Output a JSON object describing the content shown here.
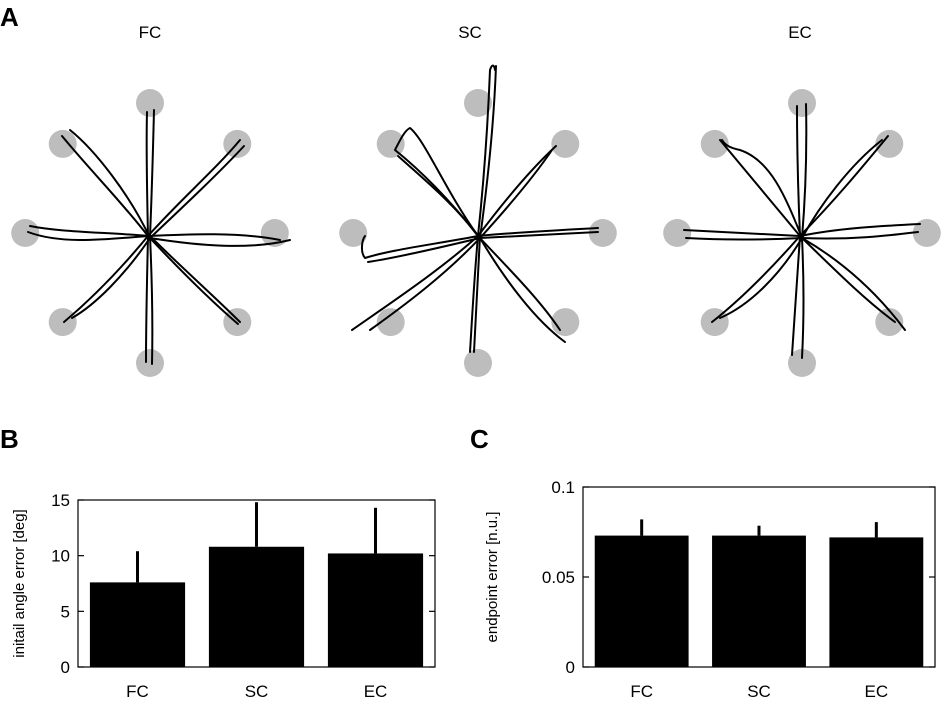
{
  "panel_a": {
    "letter": "A",
    "conditions": [
      "FC",
      "SC",
      "EC"
    ],
    "target_color": "#bdbdbd",
    "trace_color": "#000000"
  },
  "chart_data": [
    {
      "type": "bar",
      "panel": "B",
      "categories": [
        "FC",
        "SC",
        "EC"
      ],
      "values": [
        7.6,
        10.8,
        10.2
      ],
      "errors": [
        2.8,
        4.0,
        4.1
      ],
      "ylabel": "initail angle error [deg]",
      "ylim": [
        0,
        15
      ],
      "yticks": [
        0,
        5,
        10,
        15
      ],
      "ytick_labels": [
        "0",
        "5",
        "10",
        "15"
      ],
      "bar_color": "#000000"
    },
    {
      "type": "bar",
      "panel": "C",
      "categories": [
        "FC",
        "SC",
        "EC"
      ],
      "values": [
        0.073,
        0.073,
        0.072
      ],
      "errors": [
        0.009,
        0.0055,
        0.0085
      ],
      "ylabel": "endpoint error [n.u.]",
      "ylim": [
        0,
        0.1
      ],
      "yticks": [
        0,
        0.05,
        0.1
      ],
      "ytick_labels": [
        "0",
        "0.05",
        "0.1"
      ],
      "bar_color": "#000000"
    }
  ]
}
